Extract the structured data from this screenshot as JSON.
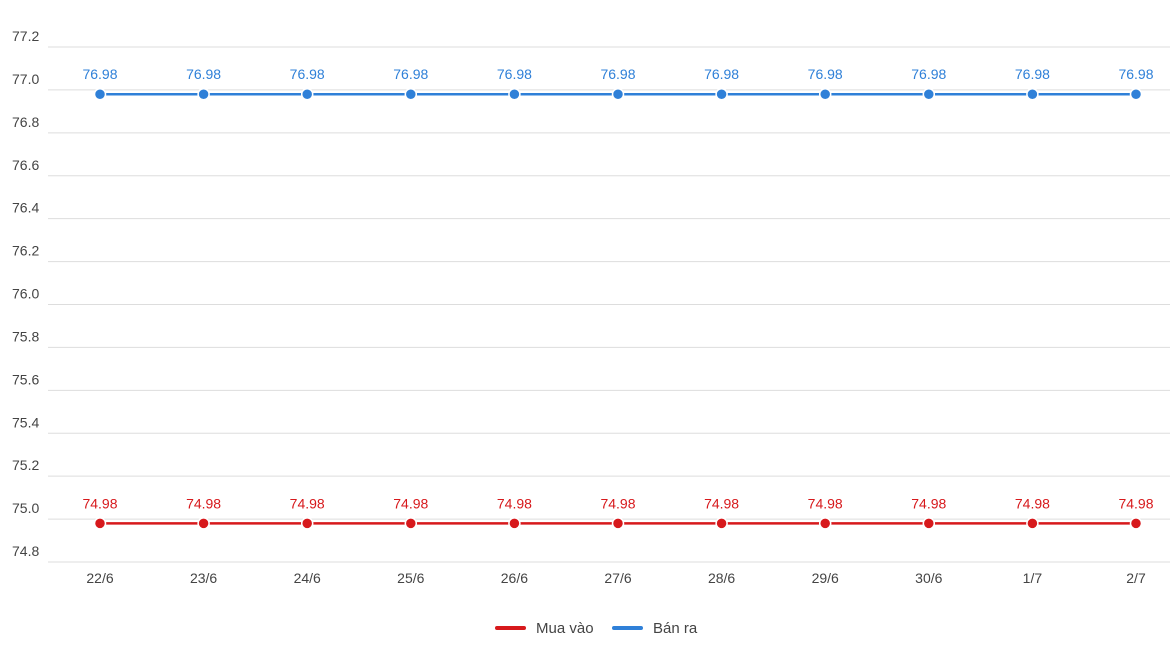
{
  "chart_data": {
    "type": "line",
    "categories": [
      "22/6",
      "23/6",
      "24/6",
      "25/6",
      "26/6",
      "27/6",
      "28/6",
      "29/6",
      "30/6",
      "1/7",
      "2/7"
    ],
    "yticks": [
      "74.8",
      "75.0",
      "75.2",
      "75.4",
      "75.6",
      "75.8",
      "76.0",
      "76.2",
      "76.4",
      "76.6",
      "76.8",
      "77.0",
      "77.2"
    ],
    "ylim": [
      74.8,
      77.2
    ],
    "grid": true,
    "legend_position": "bottom-center",
    "series": [
      {
        "name": "Mua vào",
        "color": "#d7191c",
        "values": [
          74.98,
          74.98,
          74.98,
          74.98,
          74.98,
          74.98,
          74.98,
          74.98,
          74.98,
          74.98,
          74.98
        ],
        "labels": [
          "74.98",
          "74.98",
          "74.98",
          "74.98",
          "74.98",
          "74.98",
          "74.98",
          "74.98",
          "74.98",
          "74.98",
          "74.98"
        ]
      },
      {
        "name": "Bán ra",
        "color": "#2f80d8",
        "values": [
          76.98,
          76.98,
          76.98,
          76.98,
          76.98,
          76.98,
          76.98,
          76.98,
          76.98,
          76.98,
          76.98
        ],
        "labels": [
          "76.98",
          "76.98",
          "76.98",
          "76.98",
          "76.98",
          "76.98",
          "76.98",
          "76.98",
          "76.98",
          "76.98",
          "76.98"
        ]
      }
    ]
  }
}
